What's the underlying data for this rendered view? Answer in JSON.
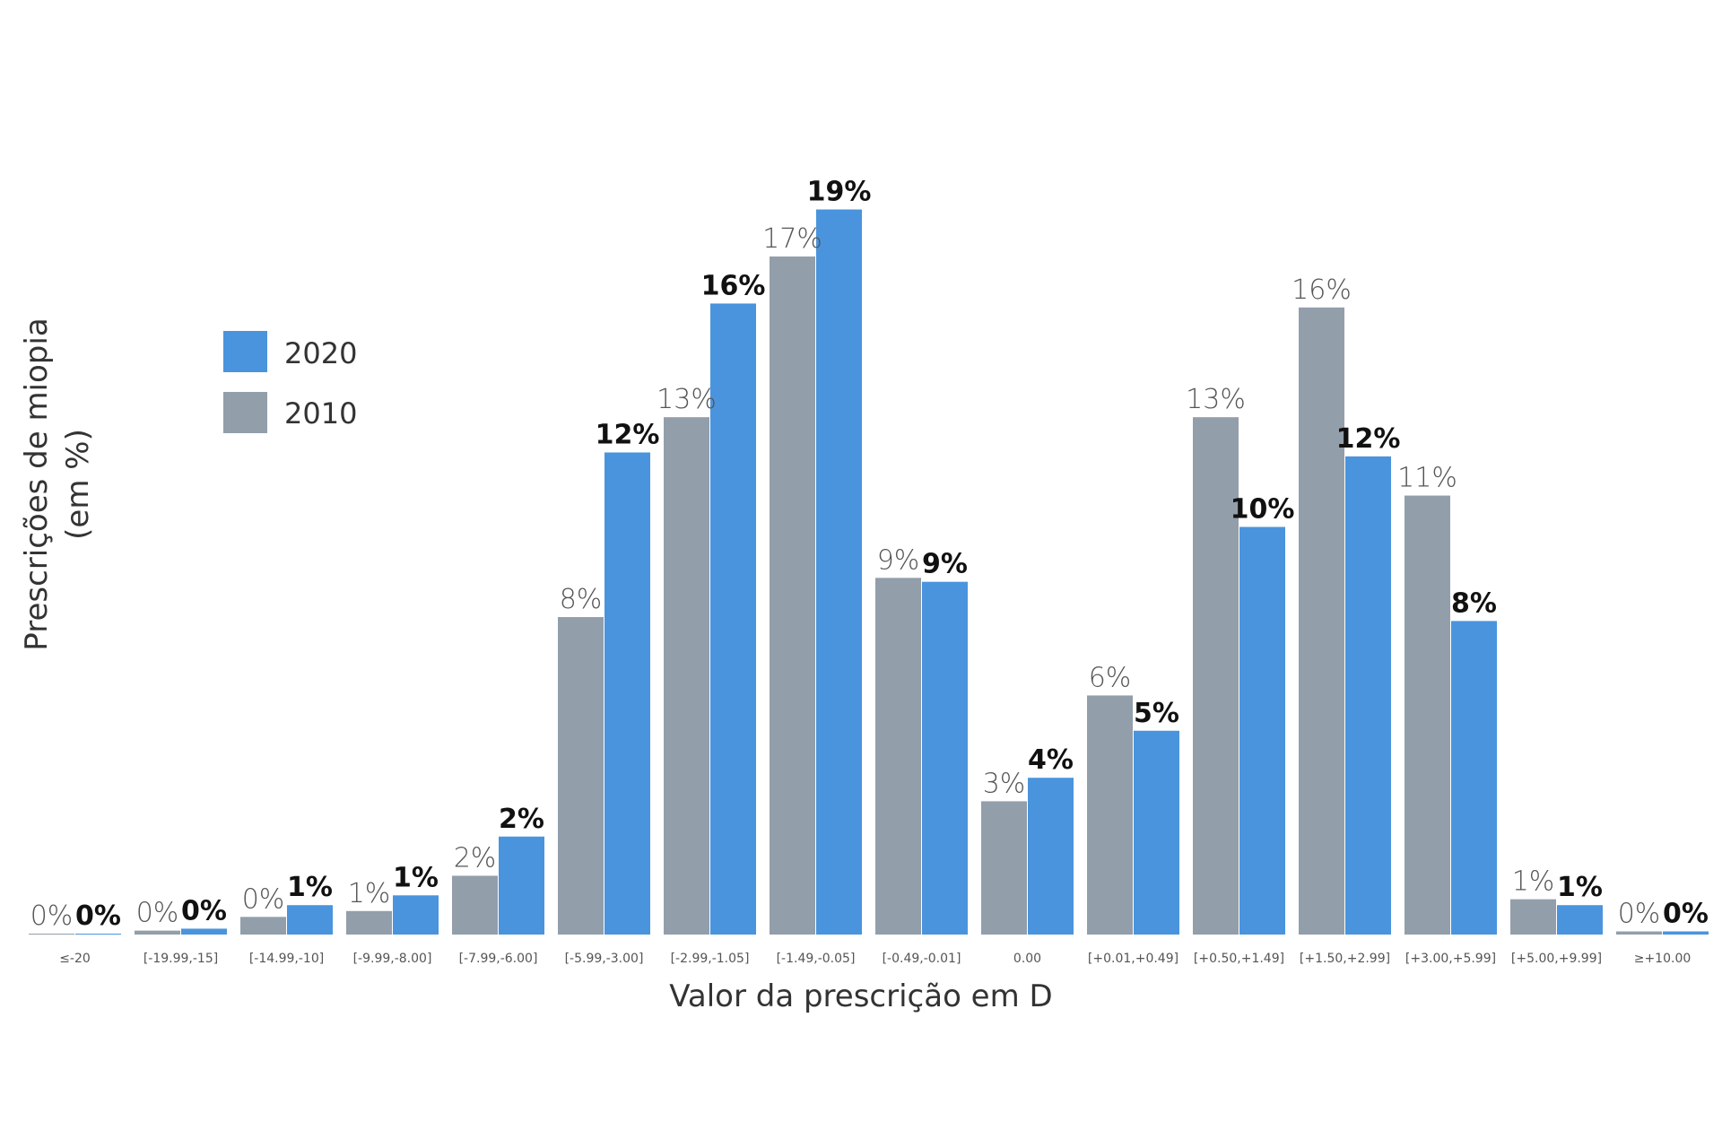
{
  "chart_data": {
    "type": "bar",
    "xlabel": "Valor da prescrição em D",
    "ylabel_lines": [
      "Prescrições de miopia",
      "(em %)"
    ],
    "ylim": [
      0,
      19
    ],
    "grid": false,
    "legend_position": "upper-left",
    "categories": [
      "≤-20",
      "[-19.99,-15]",
      "[-14.99,-10]",
      "[-9.99,-8.00]",
      "[-7.99,-6.00]",
      "[-5.99,-3.00]",
      "[-2.99,-1.05]",
      "[-1.49,-0.05]",
      "[-0.49,-0.01]",
      "0.00",
      "[+0.01,+0.49]",
      "[+0.50,+1.49]",
      "[+1.50,+2.99]",
      "[+3.00,+5.99]",
      "[+5.00,+9.99]",
      "≥+10.00"
    ],
    "series": [
      {
        "name": "2010",
        "color": "#939eab",
        "values": [
          0.0,
          0.1,
          0.45,
          0.6,
          1.5,
          8.1,
          13.2,
          17.3,
          9.1,
          3.4,
          6.1,
          13.2,
          16.0,
          11.2,
          0.9,
          0.08
        ],
        "labels": [
          "0%",
          "0%",
          "0%",
          "1%",
          "2%",
          "8%",
          "13%",
          "17%",
          "9%",
          "3%",
          "6%",
          "13%",
          "16%",
          "11%",
          "1%",
          "0%"
        ]
      },
      {
        "name": "2020",
        "color": "#4a94dd",
        "values": [
          0.0,
          0.15,
          0.75,
          1.0,
          2.5,
          12.3,
          16.1,
          18.5,
          9.0,
          4.0,
          5.2,
          10.4,
          12.2,
          8.0,
          0.75,
          0.08
        ],
        "labels": [
          "0%",
          "0%",
          "1%",
          "1%",
          "2%",
          "12%",
          "16%",
          "19%",
          "9%",
          "4%",
          "5%",
          "10%",
          "12%",
          "8%",
          "1%",
          "0%"
        ]
      }
    ],
    "legend": [
      {
        "label": "2020",
        "color": "#4a94dd"
      },
      {
        "label": "2010",
        "color": "#939eab"
      }
    ]
  }
}
